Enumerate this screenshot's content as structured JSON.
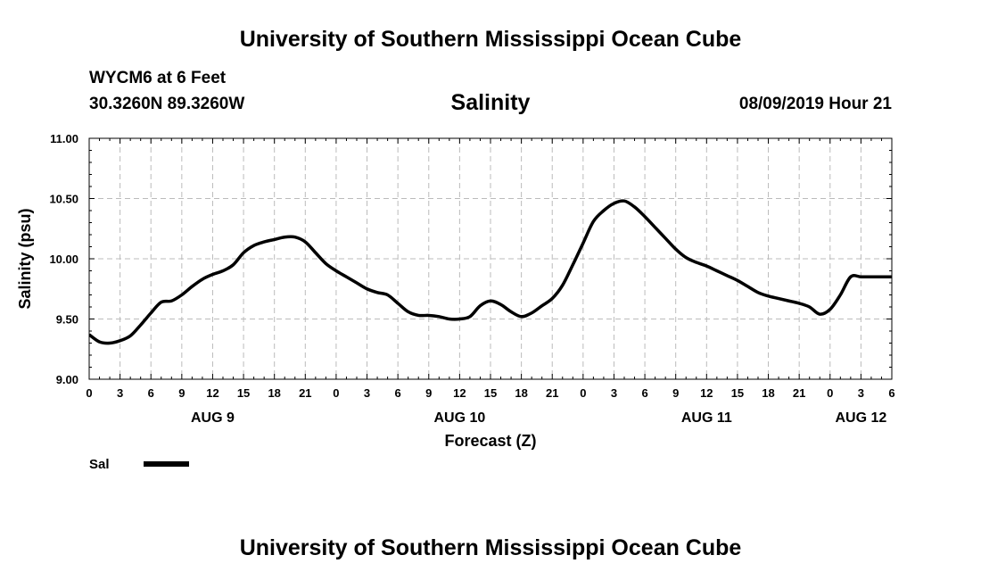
{
  "header": {
    "title_top": "University of Southern Mississippi Ocean Cube",
    "station": "WYCM6 at 6 Feet",
    "coords": "30.3260N 89.3260W",
    "chart_title": "Salinity",
    "datetime": "08/09/2019 Hour 21",
    "title_bottom": "University of Southern Mississippi Ocean Cube"
  },
  "colors": {
    "line": "#000000",
    "grid": "#bbbbbb",
    "frame": "#000000"
  },
  "chart_data": {
    "type": "line",
    "title": "Salinity",
    "xlabel": "Forecast (Z)",
    "ylabel": "Salinity (psu)",
    "ylim": [
      9.0,
      11.0
    ],
    "yticks": [
      "9.00",
      "9.50",
      "10.00",
      "10.50",
      "11.00"
    ],
    "xlim": [
      0,
      78
    ],
    "xticks": [
      "0",
      "3",
      "6",
      "9",
      "12",
      "15",
      "18",
      "21",
      "0",
      "3",
      "6",
      "9",
      "12",
      "15",
      "18",
      "21",
      "0",
      "3",
      "6",
      "9",
      "12",
      "15",
      "18",
      "21",
      "0",
      "3",
      "6"
    ],
    "day_labels": [
      {
        "label": "AUG 9",
        "hour": 12
      },
      {
        "label": "AUG 10",
        "hour": 36
      },
      {
        "label": "AUG 11",
        "hour": 60
      },
      {
        "label": "AUG 12",
        "hour": 75
      }
    ],
    "grid": true,
    "legend": [
      {
        "name": "Sal",
        "position": "bottom-left"
      }
    ],
    "series": [
      {
        "name": "Sal",
        "x": [
          0,
          1,
          2,
          3,
          4,
          5,
          6,
          7,
          8,
          9,
          10,
          11,
          12,
          13,
          14,
          15,
          16,
          17,
          18,
          19,
          20,
          21,
          22,
          23,
          24,
          25,
          26,
          27,
          28,
          29,
          30,
          31,
          32,
          33,
          34,
          35,
          36,
          37,
          38,
          39,
          40,
          41,
          42,
          43,
          44,
          45,
          46,
          47,
          48,
          49,
          50,
          51,
          52,
          53,
          54,
          55,
          56,
          57,
          58,
          59,
          60,
          61,
          62,
          63,
          64,
          65,
          66,
          67,
          68,
          69,
          70,
          71,
          72,
          73,
          74,
          75,
          76,
          77,
          78
        ],
        "values": [
          9.37,
          9.31,
          9.3,
          9.32,
          9.36,
          9.45,
          9.55,
          9.64,
          9.65,
          9.7,
          9.77,
          9.83,
          9.87,
          9.9,
          9.95,
          10.05,
          10.11,
          10.14,
          10.16,
          10.18,
          10.18,
          10.14,
          10.05,
          9.96,
          9.9,
          9.85,
          9.8,
          9.75,
          9.72,
          9.7,
          9.63,
          9.56,
          9.53,
          9.53,
          9.52,
          9.5,
          9.5,
          9.52,
          9.61,
          9.65,
          9.62,
          9.56,
          9.52,
          9.55,
          9.61,
          9.67,
          9.78,
          9.95,
          10.13,
          10.31,
          10.4,
          10.46,
          10.48,
          10.43,
          10.35,
          10.26,
          10.17,
          10.08,
          10.01,
          9.97,
          9.94,
          9.9,
          9.86,
          9.82,
          9.77,
          9.72,
          9.69,
          9.67,
          9.65,
          9.63,
          9.6,
          9.54,
          9.58,
          9.7,
          9.85,
          9.85,
          9.85,
          9.85,
          9.85
        ]
      }
    ]
  }
}
